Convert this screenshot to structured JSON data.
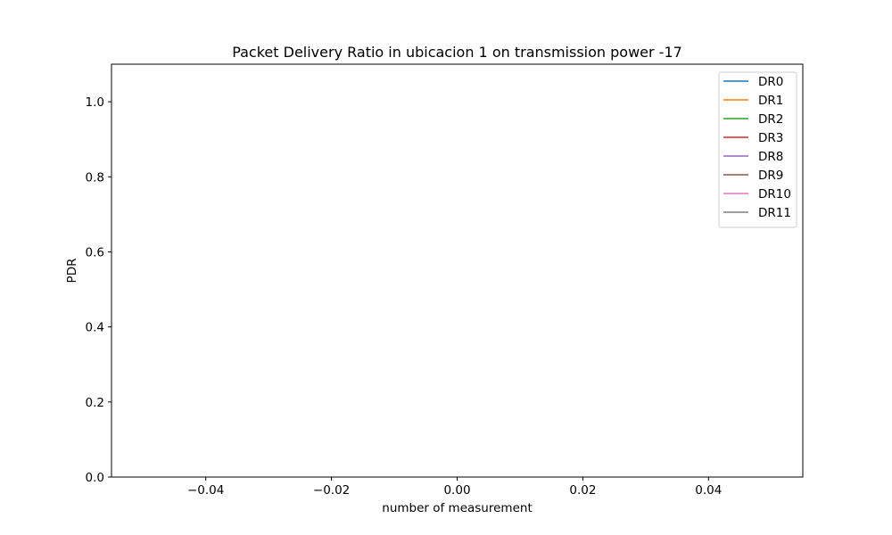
{
  "chart_data": {
    "type": "line",
    "title": "Packet Delivery Ratio in ubicacion 1 on transmission power -17",
    "xlabel": "number of measurement",
    "ylabel": "PDR",
    "xlim": [
      -0.055,
      0.055
    ],
    "ylim": [
      0.0,
      1.1
    ],
    "x_ticks": [
      -0.04,
      -0.02,
      0.0,
      0.02,
      0.04
    ],
    "x_tick_labels": [
      "−0.04",
      "−0.02",
      "0.00",
      "0.02",
      "0.04"
    ],
    "y_ticks": [
      0.0,
      0.2,
      0.4,
      0.6,
      0.8,
      1.0
    ],
    "y_tick_labels": [
      "0.0",
      "0.2",
      "0.4",
      "0.6",
      "0.8",
      "1.0"
    ],
    "grid": false,
    "legend_position": "top-right",
    "series": [
      {
        "name": "DR0",
        "color": "#1f77b4",
        "x": [],
        "y": []
      },
      {
        "name": "DR1",
        "color": "#ff7f0e",
        "x": [],
        "y": []
      },
      {
        "name": "DR2",
        "color": "#2ca02c",
        "x": [],
        "y": []
      },
      {
        "name": "DR3",
        "color": "#d62728",
        "x": [],
        "y": []
      },
      {
        "name": "DR8",
        "color": "#9467bd",
        "x": [],
        "y": []
      },
      {
        "name": "DR9",
        "color": "#8c564b",
        "x": [],
        "y": []
      },
      {
        "name": "DR10",
        "color": "#e377c2",
        "x": [],
        "y": []
      },
      {
        "name": "DR11",
        "color": "#7f7f7f",
        "x": [],
        "y": []
      }
    ]
  }
}
